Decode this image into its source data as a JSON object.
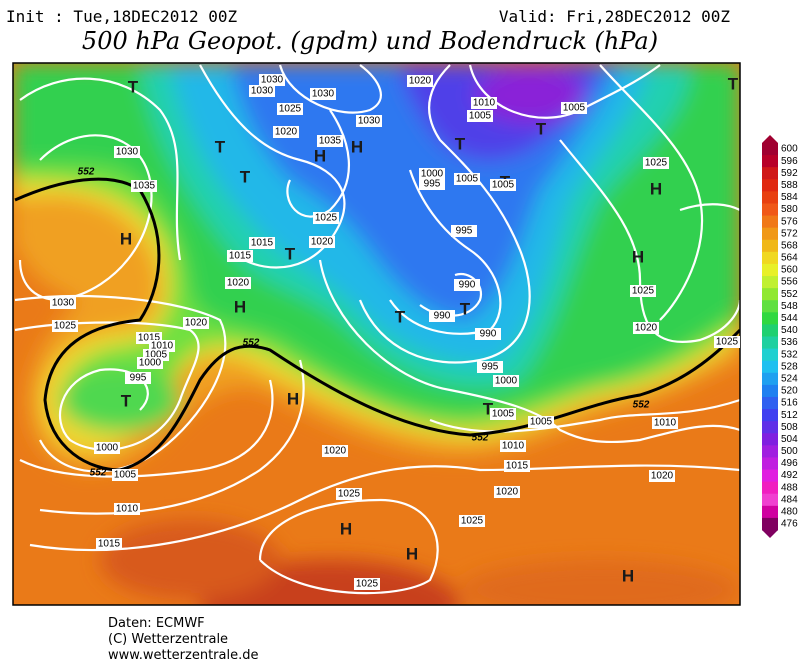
{
  "header": {
    "init": "Init : Tue,18DEC2012 00Z",
    "valid": "Valid: Fri,28DEC2012 00Z",
    "title": "500 hPa Geopot. (gpdm) und Bodendruck (hPa)"
  },
  "footer": {
    "source": "Daten: ECMWF",
    "copyright": "(C) Wetterzentrale",
    "url": "www.wetterzentrale.de"
  },
  "systems": [
    "T",
    "T",
    "T",
    "H",
    "H",
    "T",
    "H",
    "H",
    "T",
    "H",
    "T",
    "T",
    "T",
    "H",
    "H",
    "T",
    "T",
    "T",
    "H",
    "H",
    "H",
    "T"
  ],
  "isobar_labels": [
    "1030",
    "1030",
    "1030",
    "1025",
    "1020",
    "1035",
    "1030",
    "1030",
    "1035",
    "1025",
    "1015",
    "1020",
    "1015",
    "1020",
    "1030",
    "1025",
    "1015",
    "1010",
    "1005",
    "1000",
    "995",
    "1020",
    "1020",
    "1010",
    "1005",
    "1005",
    "1000",
    "995",
    "1005",
    "1005",
    "995",
    "990",
    "990",
    "990",
    "995",
    "1000",
    "1005",
    "1005",
    "1010",
    "1015",
    "1020",
    "1025",
    "1025",
    "1020",
    "1025",
    "1000",
    "1005",
    "1010",
    "1015",
    "1025",
    "1020",
    "1025",
    "1025",
    "1010",
    "1020"
  ],
  "contour_labels": [
    "552",
    "552",
    "552",
    "552",
    "552"
  ],
  "colorbar": {
    "labels": [
      600,
      596,
      592,
      588,
      584,
      580,
      576,
      572,
      568,
      564,
      560,
      556,
      552,
      548,
      544,
      540,
      536,
      532,
      528,
      524,
      520,
      516,
      512,
      508,
      504,
      500,
      496,
      492,
      488,
      484,
      480,
      476
    ],
    "colors": [
      "#a00030",
      "#b80028",
      "#d01818",
      "#e02810",
      "#e84010",
      "#f05818",
      "#f07818",
      "#f09818",
      "#f0b818",
      "#f0d820",
      "#e8f028",
      "#c0f030",
      "#90e830",
      "#60e040",
      "#30d840",
      "#20d070",
      "#20d0a0",
      "#20d0d0",
      "#20c0f0",
      "#20a0f0",
      "#2080f0",
      "#3060f0",
      "#4040f0",
      "#6030e8",
      "#8020e0",
      "#a020e0",
      "#c020e0",
      "#e020e0",
      "#f020c0",
      "#f040d0",
      "#d000a0",
      "#800060"
    ]
  }
}
